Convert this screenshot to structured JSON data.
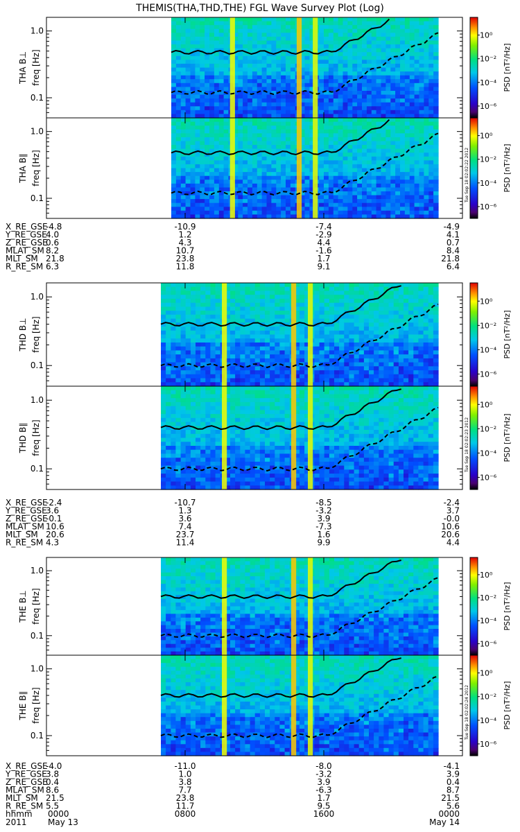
{
  "title": "THEMIS(THA,THD,THE) FGL Wave Survey Plot (Log)",
  "colorbar": {
    "label": "PSD [nT²/Hz]",
    "ticks": [
      "10⁰",
      "10⁻²",
      "10⁻⁴",
      "10⁻⁶"
    ],
    "stamps": [
      "Tue Sep 18 02:02:22 2012",
      "Tue Sep 18 02:02:23 2012",
      "Tue Sep 18 02:02:24 2012"
    ]
  },
  "y_axis": {
    "label": "freq [Hz]",
    "ticks": [
      "1.0",
      "0.1"
    ],
    "scale": "log"
  },
  "chart_data": {
    "type": "heatmap",
    "panels": [
      {
        "name": "THA B⊥",
        "data_start_hr": 7.2,
        "data_end_hr": 22.6
      },
      {
        "name": "THA B∥",
        "data_start_hr": 7.2,
        "data_end_hr": 22.6
      },
      {
        "name": "THD B⊥",
        "data_start_hr": 6.6,
        "data_end_hr": 22.6
      },
      {
        "name": "THD B∥",
        "data_start_hr": 6.6,
        "data_end_hr": 22.6
      },
      {
        "name": "THE B⊥",
        "data_start_hr": 6.6,
        "data_end_hr": 22.6
      },
      {
        "name": "THE B∥",
        "data_start_hr": 6.6,
        "data_end_hr": 22.6
      }
    ],
    "x_axis": {
      "ticks": [
        "0000",
        "0800",
        "1600",
        "0000"
      ],
      "tick_hours": [
        0,
        8,
        16,
        24
      ],
      "date_labels": [
        "2011",
        "May 13",
        "May 14"
      ]
    },
    "ylim_hz": [
      0.05,
      1.6
    ],
    "colorbar_range_log": [
      -7,
      1.5
    ]
  },
  "ephemeris": [
    {
      "probe": "THA",
      "rows": [
        {
          "label": "X_RE_GSE",
          "values": [
            "-4.8",
            "-10.9",
            "-7.4",
            "-4.9"
          ]
        },
        {
          "label": "Y_RE_GSE",
          "values": [
            "4.0",
            "1.2",
            "-2.9",
            "4.1"
          ]
        },
        {
          "label": "Z_RE_GSE",
          "values": [
            "0.6",
            "4.3",
            "4.4",
            "0.7"
          ]
        },
        {
          "label": "MLAT_SM",
          "values": [
            "8.2",
            "10.7",
            "-1.6",
            "8.4"
          ]
        },
        {
          "label": "MLT_SM",
          "values": [
            "21.8",
            "23.8",
            "1.7",
            "21.8"
          ]
        },
        {
          "label": "R_RE_SM",
          "values": [
            "6.3",
            "11.8",
            "9.1",
            "6.4"
          ]
        }
      ]
    },
    {
      "probe": "THD",
      "rows": [
        {
          "label": "X_RE_GSE",
          "values": [
            "-2.4",
            "-10.7",
            "-8.5",
            "-2.4"
          ]
        },
        {
          "label": "Y_RE_GSE",
          "values": [
            "3.6",
            "1.3",
            "-3.2",
            "3.7"
          ]
        },
        {
          "label": "Z_RE_GSE",
          "values": [
            "-0.1",
            "3.6",
            "3.9",
            "-0.0"
          ]
        },
        {
          "label": "MLAT_SM",
          "values": [
            "10.6",
            "7.4",
            "-7.3",
            "10.6"
          ]
        },
        {
          "label": "MLT_SM",
          "values": [
            "20.6",
            "23.7",
            "1.6",
            "20.6"
          ]
        },
        {
          "label": "R_RE_SM",
          "values": [
            "4.3",
            "11.4",
            "9.9",
            "4.4"
          ]
        }
      ]
    },
    {
      "probe": "THE",
      "rows": [
        {
          "label": "X_RE_GSE",
          "values": [
            "-4.0",
            "-11.0",
            "-8.0",
            "-4.1"
          ]
        },
        {
          "label": "Y_RE_GSE",
          "values": [
            "3.8",
            "1.0",
            "-3.2",
            "3.9"
          ]
        },
        {
          "label": "Z_RE_GSE",
          "values": [
            "0.4",
            "3.8",
            "3.9",
            "0.4"
          ]
        },
        {
          "label": "MLAT_SM",
          "values": [
            "8.6",
            "7.7",
            "-6.3",
            "8.7"
          ]
        },
        {
          "label": "MLT_SM",
          "values": [
            "21.5",
            "23.8",
            "1.7",
            "21.5"
          ]
        },
        {
          "label": "R_RE_SM",
          "values": [
            "5.5",
            "11.7",
            "9.5",
            "5.6"
          ]
        }
      ]
    }
  ],
  "time_row": {
    "label": "hhmm",
    "values": [
      "0000",
      "0800",
      "1600",
      "0000"
    ]
  },
  "date_row": {
    "year": "2011",
    "start": "May 13",
    "end": "May 14"
  }
}
